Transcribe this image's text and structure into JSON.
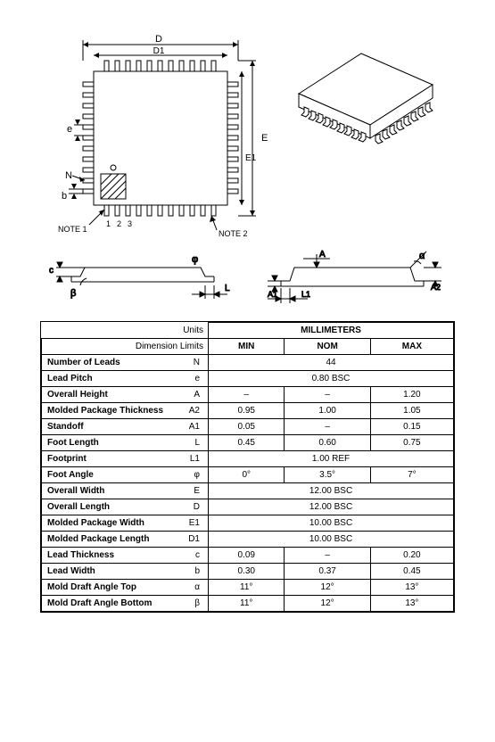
{
  "diagram": {
    "labels": {
      "D": "D",
      "D1": "D1",
      "E": "E",
      "E1": "E1",
      "e": "e",
      "b": "b",
      "N": "N",
      "note1": "NOTE 1",
      "pins": "1 2 3",
      "note2": "NOTE 2",
      "c": "c",
      "beta": "β",
      "phi": "φ",
      "L": "L",
      "A": "A",
      "A1": "A1",
      "A2": "A2",
      "L1": "L1",
      "alpha": "α"
    },
    "colors": {
      "stroke": "#000000",
      "bg": "#ffffff",
      "hatch": "#000000"
    },
    "pin_count_per_side": 11
  },
  "table": {
    "header": {
      "units": "Units",
      "mm": "MILLIMETERS",
      "dimlim": "Dimension Limits",
      "min": "MIN",
      "nom": "NOM",
      "max": "MAX"
    },
    "rows": [
      {
        "label": "Number of Leads",
        "sym": "N",
        "span": "44"
      },
      {
        "label": "Lead Pitch",
        "sym": "e",
        "span": "0.80 BSC"
      },
      {
        "label": "Overall Height",
        "sym": "A",
        "min": "–",
        "nom": "–",
        "max": "1.20"
      },
      {
        "label": "Molded Package Thickness",
        "sym": "A2",
        "min": "0.95",
        "nom": "1.00",
        "max": "1.05"
      },
      {
        "label": "Standoff",
        "sym": "A1",
        "min": "0.05",
        "nom": "–",
        "max": "0.15"
      },
      {
        "label": "Foot Length",
        "sym": "L",
        "min": "0.45",
        "nom": "0.60",
        "max": "0.75"
      },
      {
        "label": "Footprint",
        "sym": "L1",
        "span": "1.00 REF"
      },
      {
        "label": "Foot Angle",
        "sym": "φ",
        "min": "0°",
        "nom": "3.5°",
        "max": "7°"
      },
      {
        "label": "Overall Width",
        "sym": "E",
        "span": "12.00 BSC"
      },
      {
        "label": "Overall Length",
        "sym": "D",
        "span": "12.00 BSC"
      },
      {
        "label": "Molded Package Width",
        "sym": "E1",
        "span": "10.00 BSC"
      },
      {
        "label": "Molded Package Length",
        "sym": "D1",
        "span": "10.00 BSC"
      },
      {
        "label": "Lead Thickness",
        "sym": "c",
        "min": "0.09",
        "nom": "–",
        "max": "0.20"
      },
      {
        "label": "Lead Width",
        "sym": "b",
        "min": "0.30",
        "nom": "0.37",
        "max": "0.45"
      },
      {
        "label": "Mold Draft Angle Top",
        "sym": "α",
        "min": "11°",
        "nom": "12°",
        "max": "13°"
      },
      {
        "label": "Mold Draft Angle Bottom",
        "sym": "β",
        "min": "11°",
        "nom": "12°",
        "max": "13°"
      }
    ]
  }
}
